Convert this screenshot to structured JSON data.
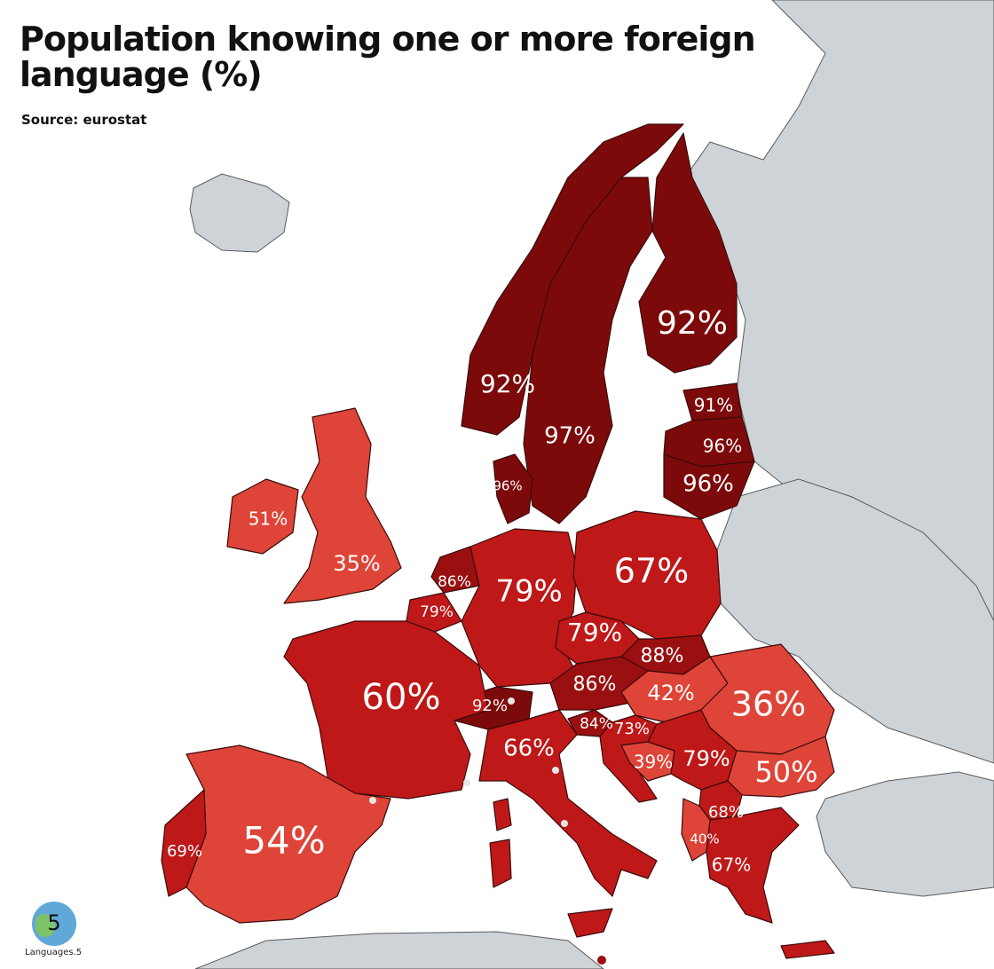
{
  "title": "Population knowing one or more foreign language (%)",
  "source": "Source: eurostat",
  "logo": {
    "number": "5",
    "text": "Languages.5"
  },
  "colors": {
    "very_high": "#7d0a0a",
    "high": "#9a0f10",
    "medium": "#bf1818",
    "low": "#df4438",
    "non_eu": "#ced3d8",
    "sea": "#ffffff"
  },
  "countries": [
    {
      "name": "Norway",
      "value": "92%",
      "tier": "very_high"
    },
    {
      "name": "Sweden",
      "value": "97%",
      "tier": "very_high"
    },
    {
      "name": "Finland",
      "value": "92%",
      "tier": "very_high"
    },
    {
      "name": "Estonia",
      "value": "91%",
      "tier": "very_high"
    },
    {
      "name": "Latvia",
      "value": "96%",
      "tier": "very_high"
    },
    {
      "name": "Lithuania",
      "value": "96%",
      "tier": "very_high"
    },
    {
      "name": "Denmark",
      "value": "96%",
      "tier": "very_high"
    },
    {
      "name": "Ireland",
      "value": "51%",
      "tier": "low"
    },
    {
      "name": "United Kingdom",
      "value": "35%",
      "tier": "low"
    },
    {
      "name": "Netherlands",
      "value": "86%",
      "tier": "high"
    },
    {
      "name": "Belgium",
      "value": "79%",
      "tier": "medium"
    },
    {
      "name": "Germany",
      "value": "79%",
      "tier": "medium"
    },
    {
      "name": "Poland",
      "value": "67%",
      "tier": "medium"
    },
    {
      "name": "Czechia",
      "value": "79%",
      "tier": "medium"
    },
    {
      "name": "Slovakia",
      "value": "88%",
      "tier": "high"
    },
    {
      "name": "Austria",
      "value": "86%",
      "tier": "high"
    },
    {
      "name": "Switzerland",
      "value": "92%",
      "tier": "very_high"
    },
    {
      "name": "France",
      "value": "60%",
      "tier": "medium"
    },
    {
      "name": "Hungary",
      "value": "42%",
      "tier": "low"
    },
    {
      "name": "Romania",
      "value": "36%",
      "tier": "low"
    },
    {
      "name": "Slovenia",
      "value": "84%",
      "tier": "high"
    },
    {
      "name": "Croatia",
      "value": "73%",
      "tier": "medium"
    },
    {
      "name": "Italy",
      "value": "66%",
      "tier": "medium"
    },
    {
      "name": "Bosnia and Herzegovina",
      "value": "39%",
      "tier": "low"
    },
    {
      "name": "Serbia",
      "value": "79%",
      "tier": "medium"
    },
    {
      "name": "Bulgaria",
      "value": "50%",
      "tier": "low"
    },
    {
      "name": "North Macedonia",
      "value": "68%",
      "tier": "medium"
    },
    {
      "name": "Albania",
      "value": "40%",
      "tier": "low"
    },
    {
      "name": "Greece",
      "value": "67%",
      "tier": "medium"
    },
    {
      "name": "Spain",
      "value": "54%",
      "tier": "low"
    },
    {
      "name": "Portugal",
      "value": "69%",
      "tier": "medium"
    }
  ]
}
